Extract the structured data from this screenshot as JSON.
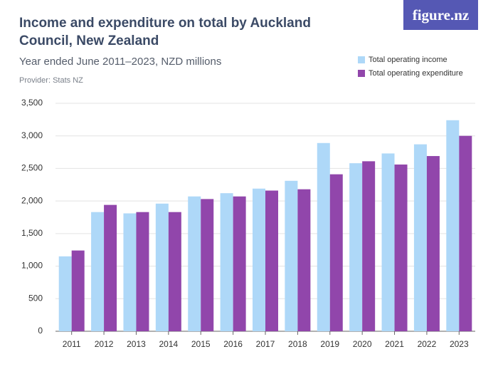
{
  "chart_data": {
    "type": "bar",
    "title": "Income and expenditure on total by Auckland Council, New Zealand",
    "subtitle": "Year ended June 2011–2023, NZD millions",
    "provider": "Provider: Stats NZ",
    "logo": "figure.nz",
    "categories": [
      "2011",
      "2012",
      "2013",
      "2014",
      "2015",
      "2016",
      "2017",
      "2018",
      "2019",
      "2020",
      "2021",
      "2022",
      "2023"
    ],
    "series": [
      {
        "name": "Total operating income",
        "color": "#aed8f8",
        "values": [
          1150,
          1830,
          1810,
          1960,
          2070,
          2120,
          2190,
          2310,
          2890,
          2580,
          2730,
          2870,
          3240
        ]
      },
      {
        "name": "Total operating expenditure",
        "color": "#9146ab",
        "values": [
          1240,
          1940,
          1830,
          1830,
          2030,
          2070,
          2160,
          2180,
          2410,
          2610,
          2560,
          2690,
          3000
        ]
      }
    ],
    "ylim": [
      0,
      3500
    ],
    "yticks": [
      0,
      500,
      {
        "value": 1000,
        "label": "1,000"
      },
      {
        "value": 1500,
        "label": "1,500"
      },
      {
        "value": 2000,
        "label": "2,000"
      },
      {
        "value": 2500,
        "label": "2,500"
      },
      {
        "value": 3000,
        "label": "3,000"
      },
      {
        "value": 3500,
        "label": "3,500"
      }
    ],
    "grid": true,
    "legend": "top-right"
  }
}
